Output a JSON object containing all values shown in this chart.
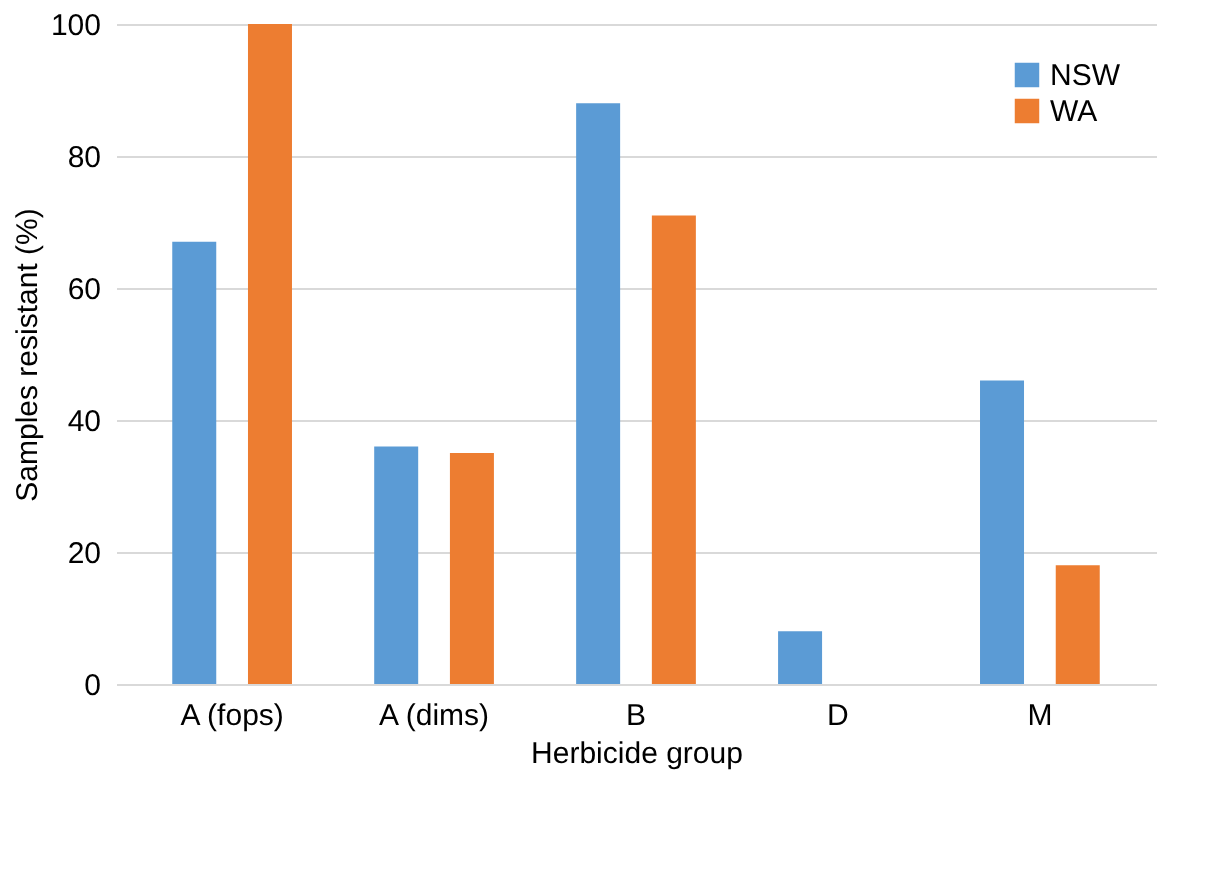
{
  "chart_data": {
    "type": "bar",
    "xlabel": "Herbicide group",
    "ylabel": "Samples resistant (%)",
    "categories": [
      "A (fops)",
      "A (dims)",
      "B",
      "D",
      "M"
    ],
    "series": [
      {
        "name": "NSW",
        "color": "#5b9bd5",
        "values": [
          67,
          36,
          88,
          8,
          46
        ]
      },
      {
        "name": "WA",
        "color": "#ed7d31",
        "values": [
          100,
          35,
          71,
          0,
          18
        ]
      }
    ],
    "ylim": [
      0,
      100
    ],
    "yticks": [
      0,
      20,
      40,
      60,
      80,
      100
    ],
    "grid": "y",
    "legend": "top right"
  }
}
